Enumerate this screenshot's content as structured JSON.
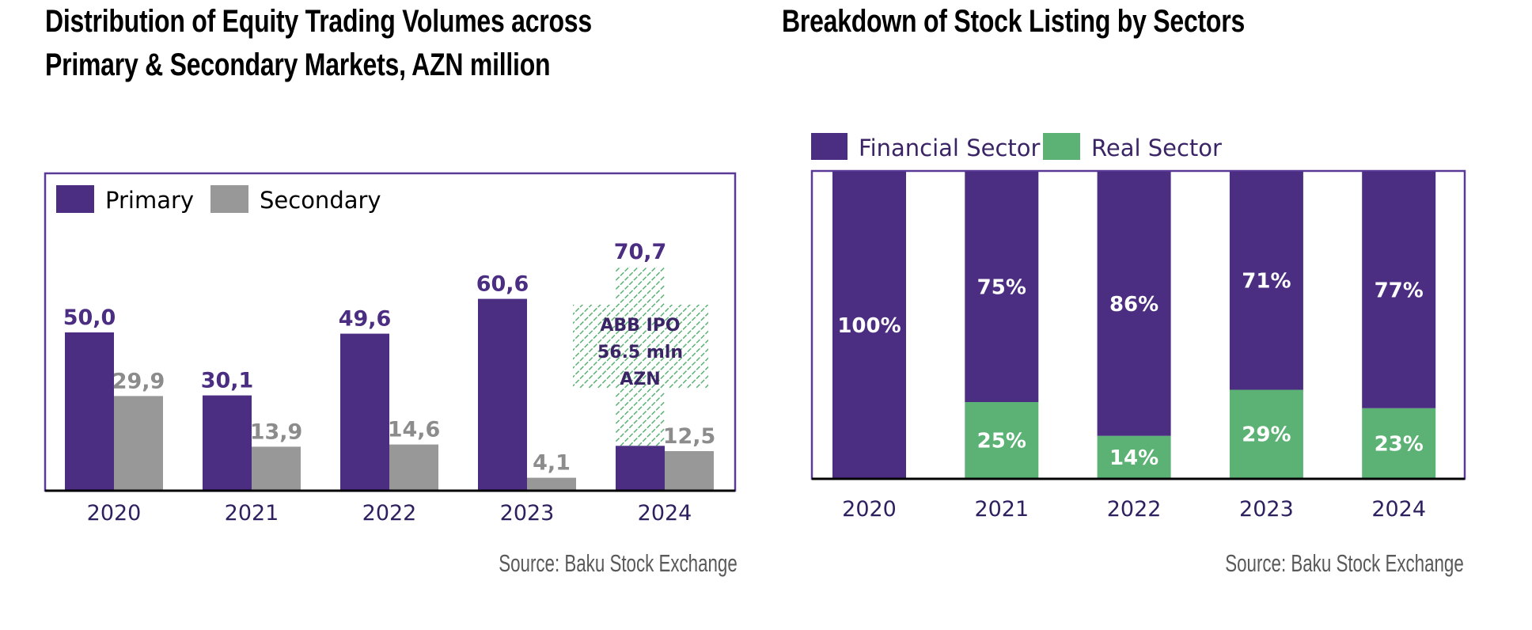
{
  "colors": {
    "primary": "#4B2D82",
    "secondary": "#989898",
    "financial": "#4B2D82",
    "real": "#5BB274",
    "year_label": "#2E1F5E",
    "ipo_text": "#3A2466"
  },
  "chart_data": [
    {
      "type": "bar",
      "title": "Distribution of Equity Trading Volumes across Primary & Secondary Markets, AZN million",
      "title_lines": [
        "Distribution of Equity Trading Volumes across",
        "Primary & Secondary Markets, AZN million"
      ],
      "categories": [
        "2020",
        "2021",
        "2022",
        "2023",
        "2024"
      ],
      "series": [
        {
          "name": "Primary",
          "values": [
            50.0,
            30.1,
            49.6,
            60.6,
            70.7
          ],
          "labels": [
            "50,0",
            "30,1",
            "49,6",
            "60,6",
            "70,7"
          ]
        },
        {
          "name": "Secondary",
          "values": [
            29.9,
            13.9,
            14.6,
            4.1,
            12.5
          ],
          "labels": [
            "29,9",
            "13,9",
            "14,6",
            "4,1",
            "12,5"
          ]
        }
      ],
      "annotation": {
        "category": "2024",
        "series": "Primary",
        "value": 56.5,
        "lines": [
          "ABB IPO",
          "56.5 mln",
          "AZN"
        ],
        "style": "hatched-green"
      },
      "xlabel": "",
      "ylabel": "",
      "ylim": [
        0,
        80
      ],
      "grid": false,
      "legend": "top-left",
      "source": "Source: Baku Stock Exchange"
    },
    {
      "type": "bar",
      "stacked": true,
      "title": "Breakdown of Stock Listing by Sectors",
      "categories": [
        "2020",
        "2021",
        "2022",
        "2023",
        "2024"
      ],
      "series": [
        {
          "name": "Financial Sector",
          "values": [
            100,
            75,
            86,
            71,
            77
          ],
          "labels": [
            "100%",
            "75%",
            "86%",
            "71%",
            "77%"
          ]
        },
        {
          "name": "Real Sector",
          "values": [
            0,
            25,
            14,
            29,
            23
          ],
          "labels": [
            "",
            "25%",
            "14%",
            "29%",
            "23%"
          ]
        }
      ],
      "xlabel": "",
      "ylabel": "",
      "ylim": [
        0,
        100
      ],
      "grid": false,
      "legend": "top-left",
      "source": "Source: Baku Stock Exchange"
    }
  ]
}
